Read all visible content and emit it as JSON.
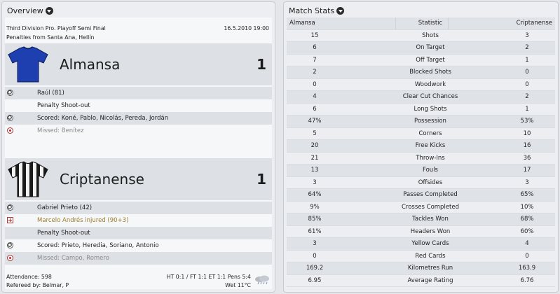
{
  "overview": {
    "title": "Overview",
    "competition": "Third Division Pro. Playoff Semi Final",
    "date": "16.5.2010 19:00",
    "penalties_info": "Penalties from Santa Ana, Hellín",
    "home": {
      "name": "Almansa",
      "score": "1",
      "events": [
        {
          "icon": "goal-ball-icon",
          "text": "Raúl (81)"
        },
        {
          "icon": "",
          "text": "Penalty Shoot-out"
        },
        {
          "icon": "goal-ball-icon",
          "text": "Scored: Koné, Pablo, Nicolás, Pereda, Jordán"
        },
        {
          "icon": "missed-penalty-icon",
          "text": "Missed: Benítez"
        }
      ]
    },
    "away": {
      "name": "Criptanense",
      "score": "1",
      "events": [
        {
          "icon": "goal-ball-icon",
          "text": "Gabriel Prieto (42)"
        },
        {
          "icon": "injury-cross-icon",
          "text": "Marcelo Andrés injured (90+3)"
        },
        {
          "icon": "",
          "text": "Penalty Shoot-out"
        },
        {
          "icon": "goal-ball-icon",
          "text": "Scored: Prieto, Heredia, Soriano, Antonio"
        },
        {
          "icon": "missed-penalty-icon",
          "text": "Missed: Campo, Romero"
        }
      ]
    },
    "attendance": "Attendance: 598",
    "referee": "Refereed by: Belmar, P",
    "scores_summary": "HT 0:1 / FT 1:1 ET 1:1 Pens 5:4",
    "weather": "Wet 11°C"
  },
  "stats": {
    "title": "Match Stats",
    "header": {
      "home": "Almansa",
      "stat": "Statistic",
      "away": "Criptanense"
    },
    "rows": [
      {
        "home": "15",
        "stat": "Shots",
        "away": "3"
      },
      {
        "home": "6",
        "stat": "On Target",
        "away": "2"
      },
      {
        "home": "7",
        "stat": "Off Target",
        "away": "1"
      },
      {
        "home": "2",
        "stat": "Blocked Shots",
        "away": "0"
      },
      {
        "home": "0",
        "stat": "Woodwork",
        "away": "0"
      },
      {
        "home": "4",
        "stat": "Clear Cut Chances",
        "away": "2"
      },
      {
        "home": "6",
        "stat": "Long Shots",
        "away": "1"
      },
      {
        "home": "47%",
        "stat": "Possession",
        "away": "53%"
      },
      {
        "home": "5",
        "stat": "Corners",
        "away": "10"
      },
      {
        "home": "20",
        "stat": "Free Kicks",
        "away": "16"
      },
      {
        "home": "21",
        "stat": "Throw-Ins",
        "away": "36"
      },
      {
        "home": "13",
        "stat": "Fouls",
        "away": "17"
      },
      {
        "home": "3",
        "stat": "Offsides",
        "away": "3"
      },
      {
        "home": "64%",
        "stat": "Passes Completed",
        "away": "65%"
      },
      {
        "home": "9%",
        "stat": "Crosses Completed",
        "away": "10%"
      },
      {
        "home": "85%",
        "stat": "Tackles Won",
        "away": "68%"
      },
      {
        "home": "61%",
        "stat": "Headers Won",
        "away": "60%"
      },
      {
        "home": "3",
        "stat": "Yellow Cards",
        "away": "4"
      },
      {
        "home": "0",
        "stat": "Red Cards",
        "away": "0"
      },
      {
        "home": "169.2",
        "stat": "Kilometres Run",
        "away": "163.9"
      },
      {
        "home": "6.95",
        "stat": "Average Rating",
        "away": "6.76"
      }
    ]
  },
  "colors": {
    "home_shirt": "#1d3fb0",
    "away_stripe_dark": "#1a1a1a",
    "away_stripe_light": "#f2f2f2"
  }
}
